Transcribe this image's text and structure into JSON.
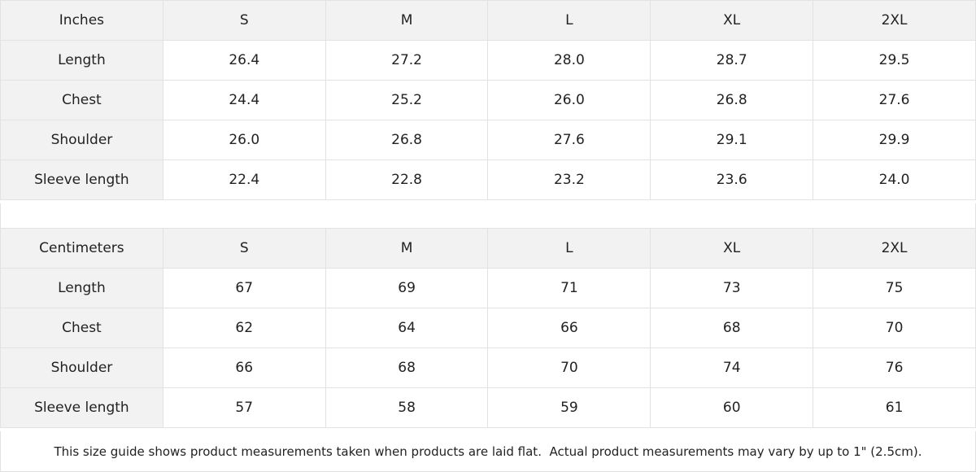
{
  "tables": [
    {
      "header": [
        "Inches",
        "S",
        "M",
        "L",
        "XL",
        "2XL"
      ],
      "rows": [
        [
          "Length",
          "26.4",
          "27.2",
          "28.0",
          "28.7",
          "29.5"
        ],
        [
          "Chest",
          "24.4",
          "25.2",
          "26.0",
          "26.8",
          "27.6"
        ],
        [
          "Shoulder",
          "26.0",
          "26.8",
          "27.6",
          "29.1",
          "29.9"
        ],
        [
          "Sleeve length",
          "22.4",
          "22.8",
          "23.2",
          "23.6",
          "24.0"
        ]
      ]
    },
    {
      "header": [
        "Centimeters",
        "S",
        "M",
        "L",
        "XL",
        "2XL"
      ],
      "rows": [
        [
          "Length",
          "67",
          "69",
          "71",
          "73",
          "75"
        ],
        [
          "Chest",
          "62",
          "64",
          "66",
          "68",
          "70"
        ],
        [
          "Shoulder",
          "66",
          "68",
          "70",
          "74",
          "76"
        ],
        [
          "Sleeve length",
          "57",
          "58",
          "59",
          "60",
          "61"
        ]
      ]
    }
  ],
  "note": "This size guide shows product measurements taken when products are laid flat.  Actual product measurements may vary by up to 1\" (2.5cm)."
}
